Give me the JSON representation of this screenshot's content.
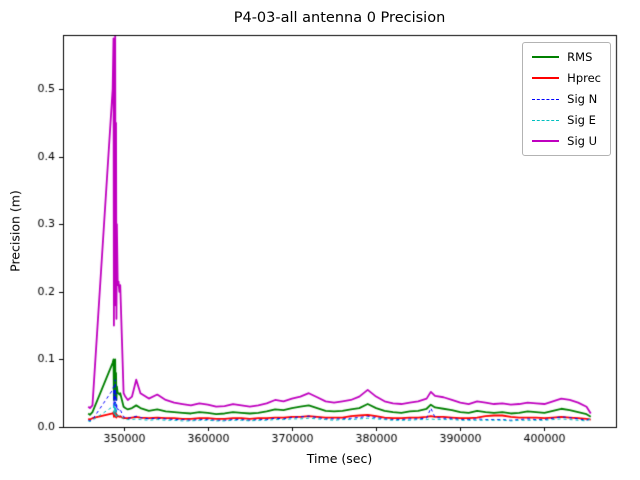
{
  "chart_data": {
    "type": "line",
    "title": "P4-03-all antenna 0 Precision",
    "xlabel": "Time (sec)",
    "ylabel": "Precision (m)",
    "xlim": [
      342800,
      408500
    ],
    "ylim": [
      0,
      0.58
    ],
    "grid": false,
    "legend_position": "upper right",
    "background_color": "#ffffff",
    "axes_color": "#000000",
    "xticks": {
      "values": [
        350000,
        360000,
        370000,
        380000,
        390000,
        400000
      ],
      "labels": [
        "350000",
        "360000",
        "370000",
        "380000",
        "390000",
        "400000"
      ]
    },
    "yticks": {
      "values": [
        0.0,
        0.1,
        0.2,
        0.3,
        0.4,
        0.5
      ],
      "labels": [
        "0.0",
        "0.1",
        "0.2",
        "0.3",
        "0.4",
        "0.5"
      ]
    },
    "x": [
      345800,
      346000,
      346300,
      348700,
      348800,
      348850,
      348900,
      348950,
      349000,
      349050,
      349100,
      349150,
      349200,
      349300,
      349400,
      349500,
      349600,
      349800,
      350000,
      350200,
      350500,
      351000,
      351500,
      352000,
      353000,
      354000,
      355000,
      356000,
      357000,
      358000,
      359000,
      360000,
      361000,
      362000,
      363000,
      364000,
      365000,
      366000,
      367000,
      368000,
      369000,
      370000,
      371000,
      372000,
      373000,
      374000,
      375000,
      376000,
      377000,
      378000,
      379000,
      380000,
      381000,
      382000,
      383000,
      384000,
      385000,
      386000,
      386500,
      387000,
      388000,
      389000,
      390000,
      391000,
      392000,
      393000,
      394000,
      395000,
      396000,
      397000,
      398000,
      399000,
      400000,
      401000,
      402000,
      403000,
      404000,
      405000,
      405500
    ],
    "series": [
      {
        "name": "RMS",
        "color": "#008000",
        "width": 1.8,
        "dash": null,
        "values": [
          0.02,
          0.018,
          0.022,
          0.095,
          0.1,
          0.04,
          0.09,
          0.05,
          0.1,
          0.045,
          0.08,
          0.04,
          0.06,
          0.05,
          0.05,
          0.048,
          0.05,
          0.04,
          0.03,
          0.028,
          0.026,
          0.028,
          0.032,
          0.028,
          0.024,
          0.026,
          0.023,
          0.022,
          0.021,
          0.02,
          0.022,
          0.021,
          0.019,
          0.02,
          0.022,
          0.021,
          0.02,
          0.021,
          0.023,
          0.026,
          0.025,
          0.028,
          0.03,
          0.032,
          0.028,
          0.024,
          0.023,
          0.024,
          0.026,
          0.028,
          0.034,
          0.028,
          0.024,
          0.022,
          0.021,
          0.023,
          0.024,
          0.027,
          0.033,
          0.029,
          0.027,
          0.025,
          0.022,
          0.021,
          0.024,
          0.022,
          0.021,
          0.022,
          0.02,
          0.021,
          0.023,
          0.022,
          0.021,
          0.024,
          0.027,
          0.025,
          0.022,
          0.019,
          0.015
        ]
      },
      {
        "name": "Hprec",
        "color": "#ff0000",
        "width": 1.8,
        "dash": null,
        "values": [
          0.012,
          0.011,
          0.013,
          0.02,
          0.022,
          0.015,
          0.021,
          0.016,
          0.022,
          0.015,
          0.02,
          0.014,
          0.018,
          0.016,
          0.016,
          0.015,
          0.016,
          0.014,
          0.013,
          0.013,
          0.013,
          0.014,
          0.015,
          0.014,
          0.013,
          0.014,
          0.013,
          0.013,
          0.012,
          0.012,
          0.013,
          0.013,
          0.012,
          0.012,
          0.013,
          0.013,
          0.012,
          0.013,
          0.013,
          0.014,
          0.014,
          0.015,
          0.015,
          0.016,
          0.015,
          0.014,
          0.014,
          0.014,
          0.016,
          0.017,
          0.018,
          0.016,
          0.014,
          0.013,
          0.013,
          0.014,
          0.014,
          0.015,
          0.016,
          0.015,
          0.015,
          0.014,
          0.013,
          0.013,
          0.014,
          0.016,
          0.017,
          0.017,
          0.015,
          0.014,
          0.014,
          0.014,
          0.013,
          0.014,
          0.015,
          0.014,
          0.013,
          0.012,
          0.011
        ]
      },
      {
        "name": "Sig N",
        "color": "#0000ff",
        "width": 1.0,
        "dash": [
          3,
          3
        ],
        "values": [
          0.01,
          0.009,
          0.011,
          0.055,
          0.06,
          0.028,
          0.055,
          0.03,
          0.07,
          0.025,
          0.05,
          0.022,
          0.032,
          0.026,
          0.026,
          0.024,
          0.026,
          0.02,
          0.015,
          0.014,
          0.013,
          0.014,
          0.016,
          0.014,
          0.012,
          0.013,
          0.012,
          0.011,
          0.011,
          0.01,
          0.011,
          0.011,
          0.01,
          0.01,
          0.011,
          0.011,
          0.01,
          0.011,
          0.011,
          0.013,
          0.012,
          0.014,
          0.015,
          0.016,
          0.014,
          0.012,
          0.012,
          0.012,
          0.013,
          0.014,
          0.016,
          0.014,
          0.012,
          0.011,
          0.011,
          0.012,
          0.012,
          0.013,
          0.028,
          0.014,
          0.013,
          0.013,
          0.011,
          0.011,
          0.012,
          0.011,
          0.011,
          0.011,
          0.01,
          0.011,
          0.012,
          0.011,
          0.011,
          0.013,
          0.015,
          0.014,
          0.012,
          0.01,
          0.013
        ]
      },
      {
        "name": "Sig E",
        "color": "#00bfbf",
        "width": 1.0,
        "dash": [
          3,
          3
        ],
        "values": [
          0.009,
          0.008,
          0.01,
          0.03,
          0.032,
          0.018,
          0.03,
          0.018,
          0.035,
          0.016,
          0.028,
          0.015,
          0.02,
          0.017,
          0.017,
          0.016,
          0.017,
          0.014,
          0.012,
          0.011,
          0.011,
          0.011,
          0.012,
          0.011,
          0.01,
          0.011,
          0.01,
          0.01,
          0.009,
          0.009,
          0.01,
          0.01,
          0.009,
          0.009,
          0.01,
          0.01,
          0.009,
          0.01,
          0.01,
          0.011,
          0.011,
          0.012,
          0.012,
          0.013,
          0.012,
          0.011,
          0.01,
          0.011,
          0.011,
          0.012,
          0.013,
          0.012,
          0.011,
          0.01,
          0.01,
          0.01,
          0.011,
          0.011,
          0.012,
          0.011,
          0.011,
          0.011,
          0.01,
          0.01,
          0.01,
          0.01,
          0.01,
          0.01,
          0.009,
          0.01,
          0.01,
          0.01,
          0.01,
          0.011,
          0.012,
          0.011,
          0.01,
          0.009,
          0.012
        ]
      },
      {
        "name": "Sig U",
        "color": "#bf00bf",
        "width": 1.8,
        "dash": null,
        "values": [
          0.03,
          0.028,
          0.032,
          0.5,
          0.575,
          0.15,
          0.55,
          0.2,
          0.58,
          0.18,
          0.45,
          0.16,
          0.3,
          0.21,
          0.215,
          0.2,
          0.21,
          0.13,
          0.05,
          0.045,
          0.04,
          0.045,
          0.07,
          0.05,
          0.042,
          0.048,
          0.04,
          0.036,
          0.034,
          0.032,
          0.035,
          0.033,
          0.03,
          0.031,
          0.034,
          0.032,
          0.03,
          0.032,
          0.035,
          0.04,
          0.038,
          0.042,
          0.045,
          0.05,
          0.044,
          0.038,
          0.036,
          0.038,
          0.04,
          0.045,
          0.055,
          0.045,
          0.038,
          0.035,
          0.034,
          0.036,
          0.038,
          0.042,
          0.052,
          0.046,
          0.044,
          0.04,
          0.036,
          0.034,
          0.038,
          0.036,
          0.034,
          0.035,
          0.033,
          0.034,
          0.036,
          0.035,
          0.034,
          0.038,
          0.042,
          0.04,
          0.036,
          0.03,
          0.02
        ]
      }
    ]
  }
}
